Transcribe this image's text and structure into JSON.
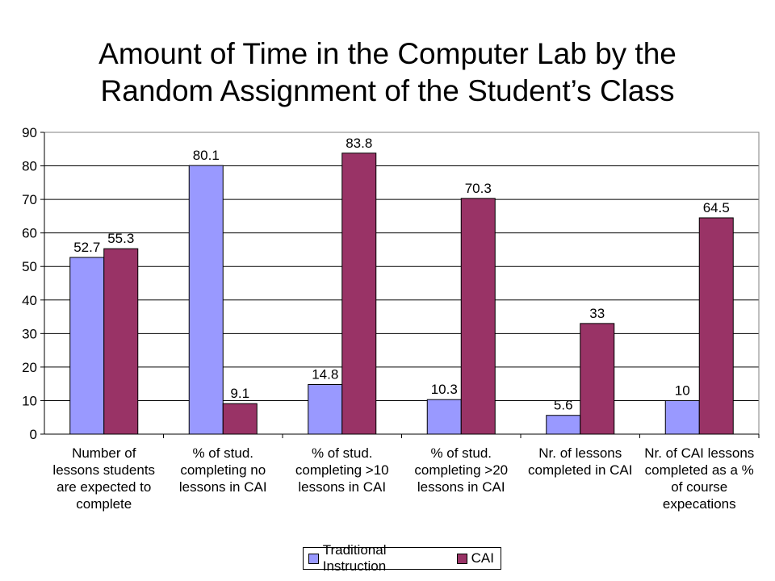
{
  "title_line1": "Amount of Time in the Computer Lab by the",
  "title_line2": "Random Assignment of the Student’s Class",
  "colors": {
    "traditional": "#9999ff",
    "cai": "#993366"
  },
  "chart_data": {
    "type": "bar",
    "title": "Amount of Time in the Computer Lab by the Random Assignment of the Student’s Class",
    "categories": [
      [
        "Number of",
        "lessons students",
        "are expected to",
        "complete"
      ],
      [
        "% of stud.",
        "completing no",
        "lessons in CAI"
      ],
      [
        "% of stud.",
        "completing >10",
        "lessons in CAI"
      ],
      [
        "% of stud.",
        "completing >20",
        "lessons in CAI"
      ],
      [
        "Nr. of lessons",
        "completed in CAI"
      ],
      [
        "Nr. of CAI lessons",
        "completed as a %",
        "of course",
        "expecations"
      ]
    ],
    "series": [
      {
        "name": "Traditional Instruction",
        "values": [
          52.7,
          80.1,
          14.8,
          10.3,
          5.6,
          10
        ],
        "labels": [
          "52.7",
          "80.1",
          "14.8",
          "10.3",
          "5.6",
          "10"
        ]
      },
      {
        "name": "CAI",
        "values": [
          55.3,
          9.1,
          83.8,
          70.3,
          33,
          64.5
        ],
        "labels": [
          "55.3",
          "9.1",
          "83.8",
          "70.3",
          "33",
          "64.5"
        ]
      }
    ],
    "ylim": [
      0,
      90
    ],
    "yticks": [
      "0",
      "10",
      "20",
      "30",
      "40",
      "50",
      "60",
      "70",
      "80",
      "90"
    ],
    "grid": true,
    "legend": "bottom"
  }
}
